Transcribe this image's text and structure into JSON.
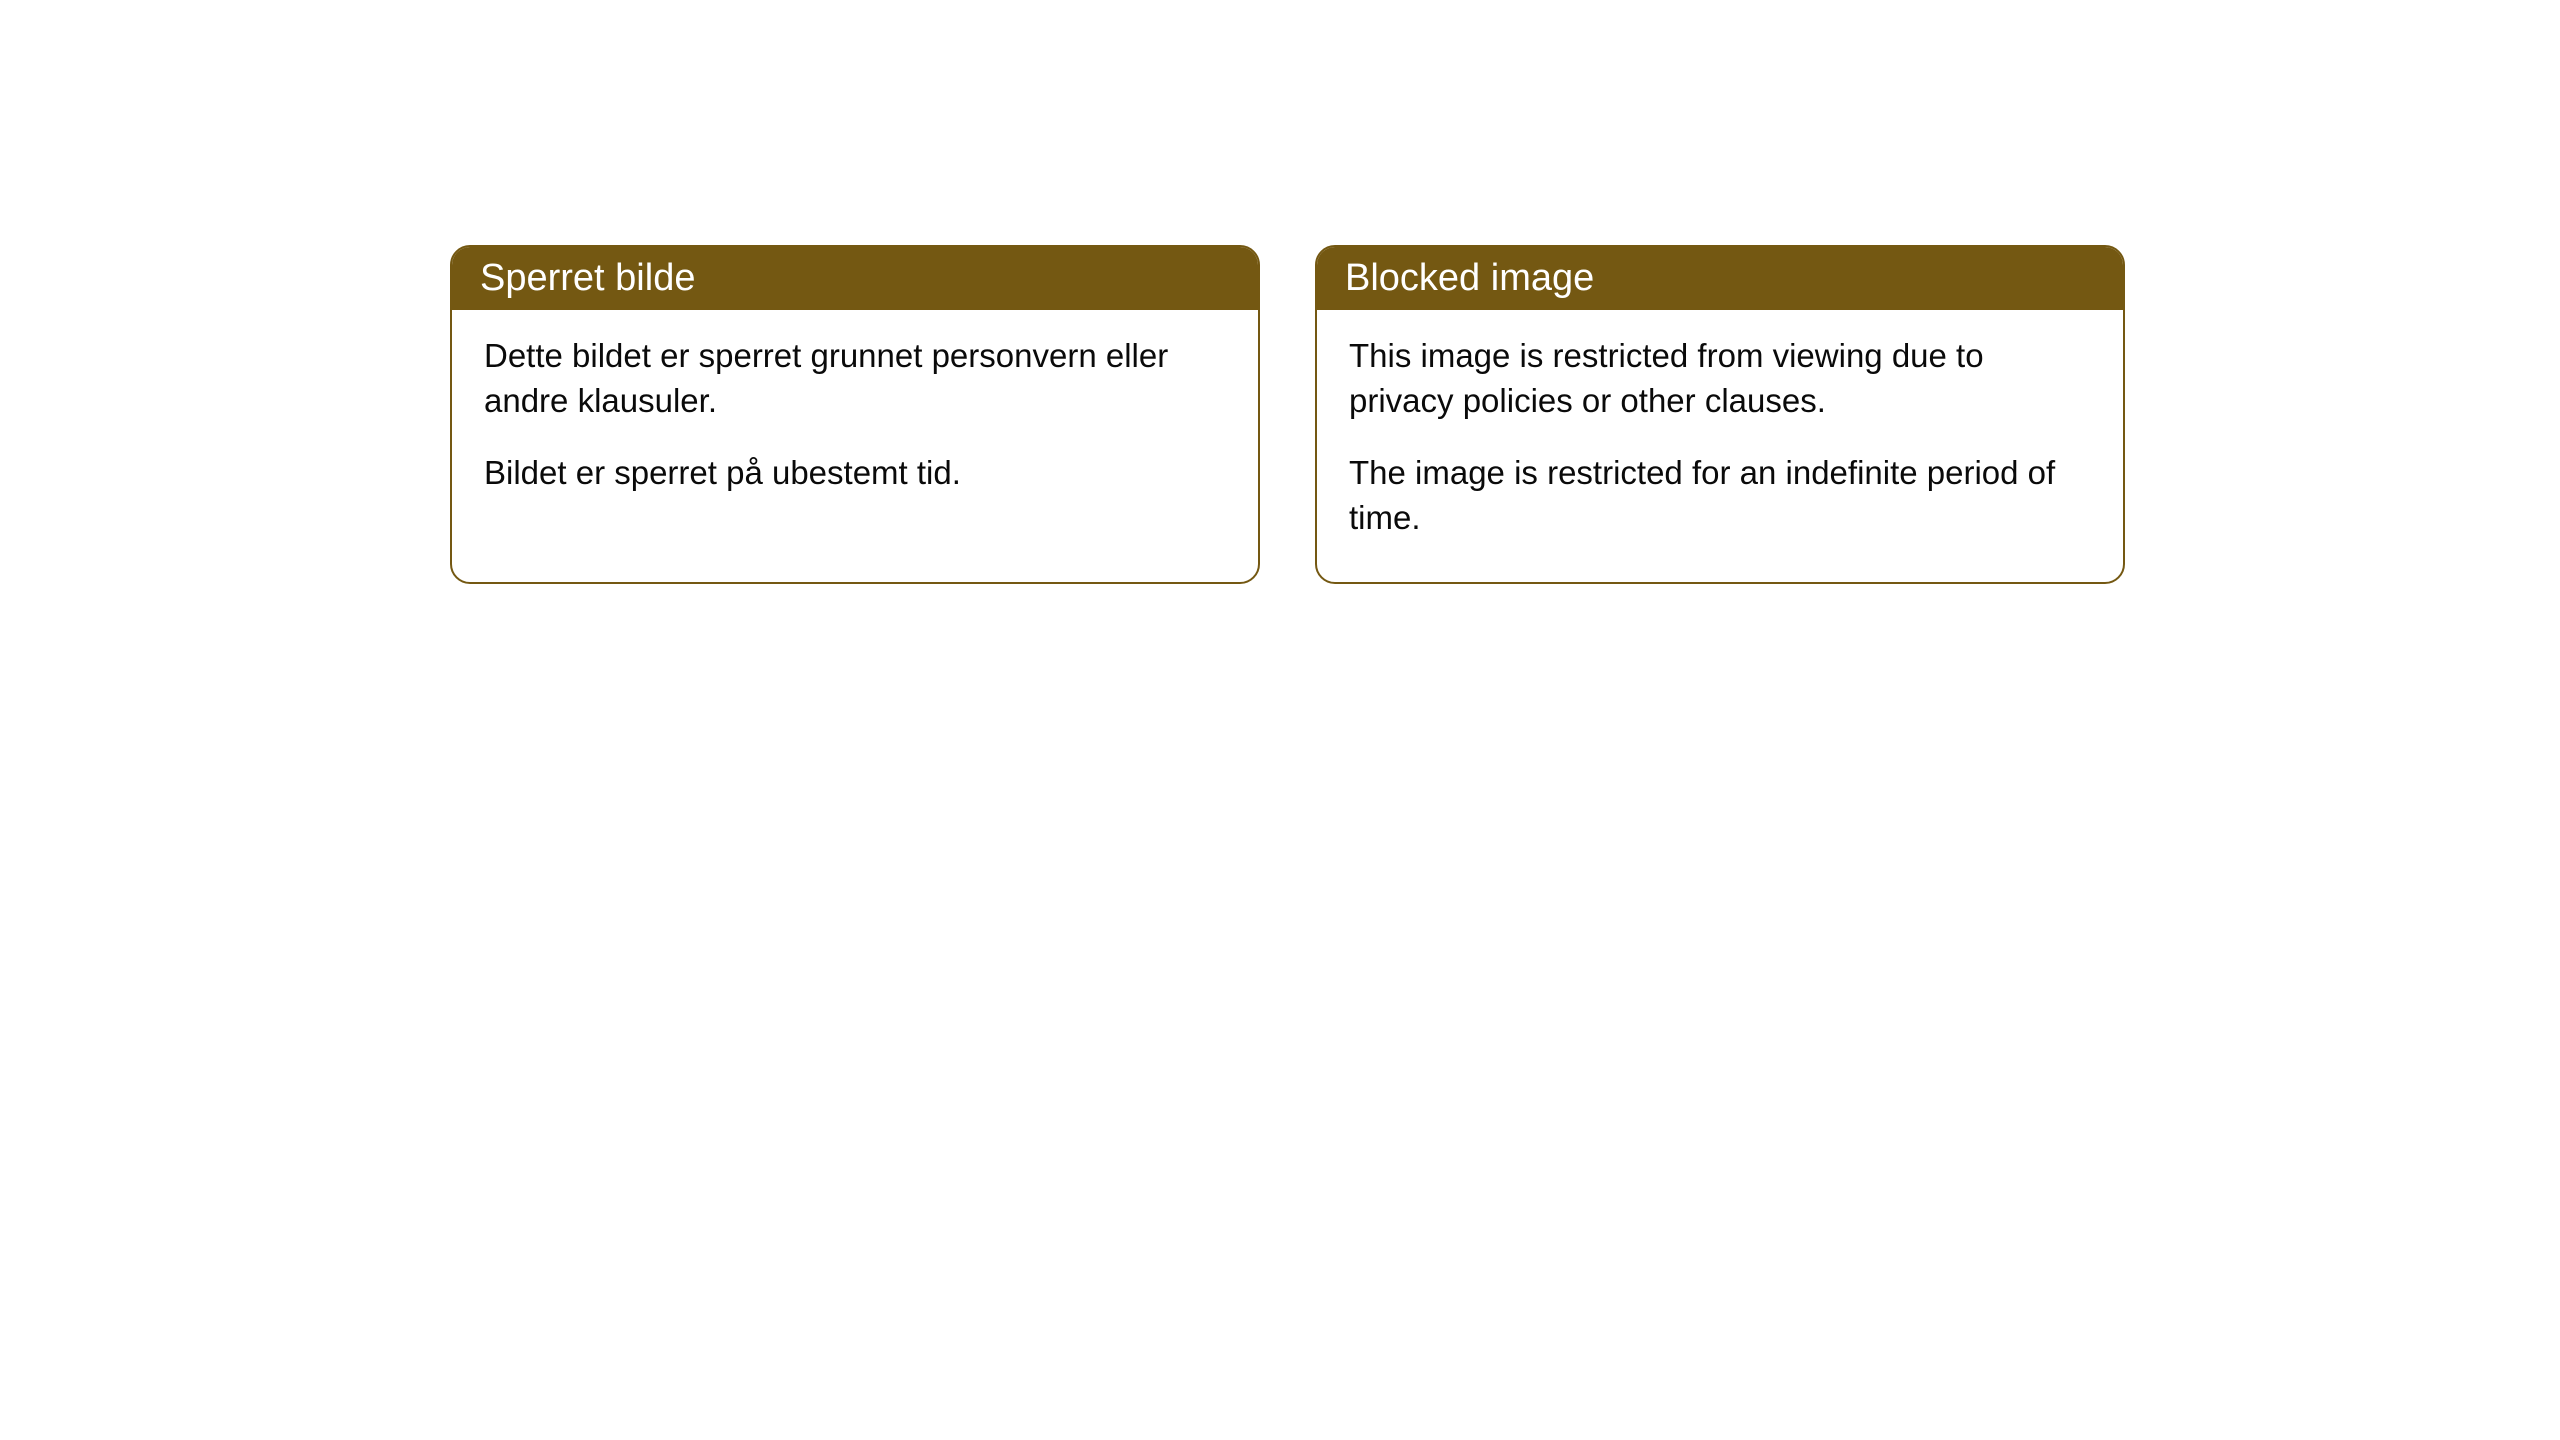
{
  "cards": [
    {
      "title": "Sperret bilde",
      "paragraph1": "Dette bildet er sperret grunnet personvern eller andre klausuler.",
      "paragraph2": "Bildet er sperret på ubestemt tid."
    },
    {
      "title": "Blocked image",
      "paragraph1": "This image is restricted from viewing due to privacy policies or other clauses.",
      "paragraph2": "The image is restricted for an indefinite period of time."
    }
  ],
  "styling": {
    "header_background_color": "#745812",
    "header_text_color": "#ffffff",
    "border_color": "#745812",
    "body_text_color": "#0a0a0a",
    "card_background_color": "#ffffff",
    "page_background_color": "#ffffff",
    "border_radius": 20,
    "header_fontsize": 38,
    "body_fontsize": 33
  }
}
